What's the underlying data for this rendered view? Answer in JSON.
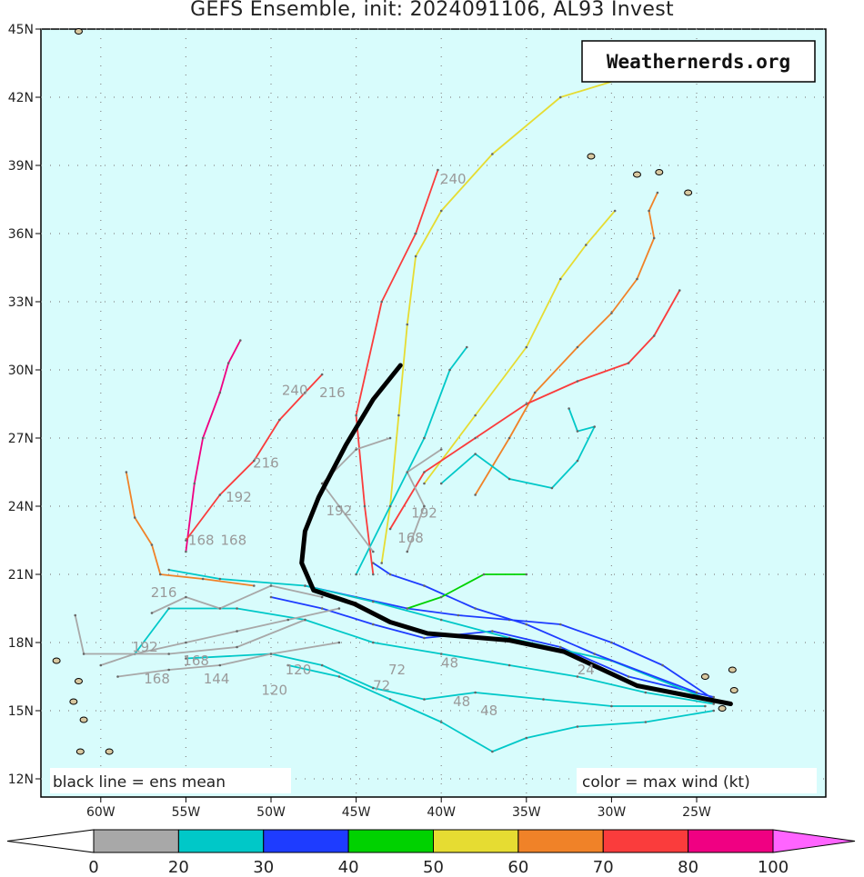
{
  "title": "GEFS Ensemble, init: 2024091106, AL93 Invest",
  "logo": "Weathernerds.org",
  "legend_left": "black line = ens mean",
  "legend_right": "color = max wind (kt)",
  "colors": {
    "ocean": "#d8fcfc",
    "mean": "#000000",
    "land": "#d8c8a0"
  },
  "chart_data": {
    "type": "map",
    "lon_range": [
      -63.5,
      -17.4
    ],
    "lat_range": [
      11.2,
      45
    ],
    "lon_ticks": [
      {
        "v": -60,
        "t": "60W"
      },
      {
        "v": -55,
        "t": "55W"
      },
      {
        "v": -50,
        "t": "50W"
      },
      {
        "v": -45,
        "t": "45W"
      },
      {
        "v": -40,
        "t": "40W"
      },
      {
        "v": -35,
        "t": "35W"
      },
      {
        "v": -30,
        "t": "30W"
      },
      {
        "v": -25,
        "t": "25W"
      }
    ],
    "lat_ticks": [
      {
        "v": 12,
        "t": "12N"
      },
      {
        "v": 15,
        "t": "15N"
      },
      {
        "v": 18,
        "t": "18N"
      },
      {
        "v": 21,
        "t": "21N"
      },
      {
        "v": 24,
        "t": "24N"
      },
      {
        "v": 27,
        "t": "27N"
      },
      {
        "v": 30,
        "t": "30N"
      },
      {
        "v": 33,
        "t": "33N"
      },
      {
        "v": 36,
        "t": "36N"
      },
      {
        "v": 39,
        "t": "39N"
      },
      {
        "v": 42,
        "t": "42N"
      },
      {
        "v": 45,
        "t": "45N"
      }
    ],
    "grid": true,
    "colorbar": {
      "labels": [
        "0",
        "20",
        "30",
        "40",
        "50",
        "60",
        "70",
        "80",
        "100"
      ],
      "colors": [
        "#a8a8a8",
        "#00c8c8",
        "#1e3cff",
        "#00d200",
        "#e6dc32",
        "#f08228",
        "#fa3c3c",
        "#f00082",
        "#ff64ff"
      ]
    },
    "ensemble_mean": [
      [
        -23,
        15.3
      ],
      [
        -28.5,
        16.1
      ],
      [
        -32.8,
        17.6
      ],
      [
        -36,
        18.1
      ],
      [
        -40.8,
        18.4
      ],
      [
        -43,
        18.9
      ],
      [
        -45.1,
        19.7
      ],
      [
        -47.5,
        20.3
      ],
      [
        -48.2,
        21.5
      ],
      [
        -48,
        22.9
      ],
      [
        -47.2,
        24.4
      ],
      [
        -45.6,
        26.7
      ],
      [
        -44,
        28.7
      ],
      [
        -42.4,
        30.2
      ]
    ],
    "members": [
      {
        "wind": 55,
        "points": [
          [
            -43.5,
            21.5
          ],
          [
            -43,
            24
          ],
          [
            -42.5,
            28
          ],
          [
            -42,
            32
          ],
          [
            -41.5,
            35
          ],
          [
            -40,
            37
          ],
          [
            -37,
            39.5
          ],
          [
            -33,
            42
          ],
          [
            -29.5,
            42.8
          ]
        ]
      },
      {
        "wind": 75,
        "points": [
          [
            -44,
            21
          ],
          [
            -44.5,
            24
          ],
          [
            -45,
            28
          ],
          [
            -43.5,
            33
          ],
          [
            -41.5,
            36
          ],
          [
            -40.2,
            38.8
          ]
        ]
      },
      {
        "wind": 65,
        "points": [
          [
            -38,
            24.5
          ],
          [
            -36,
            27
          ],
          [
            -34.5,
            29
          ],
          [
            -32,
            31
          ],
          [
            -30,
            32.5
          ],
          [
            -28.5,
            34
          ],
          [
            -27.5,
            35.8
          ],
          [
            -27.8,
            37
          ],
          [
            -27.3,
            37.8
          ]
        ]
      },
      {
        "wind": 55,
        "points": [
          [
            -41,
            25
          ],
          [
            -38,
            28
          ],
          [
            -35,
            31
          ],
          [
            -33,
            34
          ],
          [
            -31.5,
            35.5
          ],
          [
            -29.8,
            37
          ]
        ]
      },
      {
        "wind": 75,
        "points": [
          [
            -43,
            23
          ],
          [
            -41,
            25.5
          ],
          [
            -38,
            27
          ],
          [
            -35,
            28.5
          ],
          [
            -32,
            29.5
          ],
          [
            -29,
            30.3
          ],
          [
            -27.5,
            31.5
          ],
          [
            -26,
            33.5
          ]
        ]
      },
      {
        "wind": 85,
        "points": [
          [
            -55,
            22
          ],
          [
            -54.5,
            25
          ],
          [
            -54,
            27
          ],
          [
            -53,
            29
          ],
          [
            -52.5,
            30.3
          ],
          [
            -51.8,
            31.3
          ]
        ]
      },
      {
        "wind": 75,
        "points": [
          [
            -55,
            22.5
          ],
          [
            -53,
            24.5
          ],
          [
            -51,
            26
          ],
          [
            -49.5,
            27.8
          ],
          [
            -48,
            29
          ],
          [
            -47,
            29.8
          ]
        ]
      },
      {
        "wind": 25,
        "points": [
          [
            -40,
            25
          ],
          [
            -38,
            26.3
          ],
          [
            -36,
            25.2
          ],
          [
            -33.5,
            24.8
          ],
          [
            -32,
            26
          ],
          [
            -31,
            27.5
          ],
          [
            -32,
            27.3
          ],
          [
            -32.5,
            28.3
          ]
        ]
      },
      {
        "wind": 65,
        "points": [
          [
            -58.5,
            25.5
          ],
          [
            -58,
            23.5
          ],
          [
            -57,
            22.3
          ],
          [
            -56.5,
            21
          ],
          [
            -54,
            20.8
          ],
          [
            -51,
            20.5
          ]
        ]
      },
      {
        "wind": 25,
        "points": [
          [
            -45,
            21
          ],
          [
            -43,
            24
          ],
          [
            -41,
            27
          ],
          [
            -39.5,
            30
          ],
          [
            -38.5,
            31
          ]
        ]
      },
      {
        "wind": 25,
        "points": [
          [
            -24,
            15.3
          ],
          [
            -28,
            15.8
          ],
          [
            -32,
            16.5
          ],
          [
            -36,
            17
          ],
          [
            -40,
            17.5
          ],
          [
            -44,
            18
          ],
          [
            -48,
            19
          ],
          [
            -52,
            19.5
          ],
          [
            -56,
            19.5
          ],
          [
            -58,
            17.5
          ]
        ]
      },
      {
        "wind": 35,
        "points": [
          [
            -24,
            15.5
          ],
          [
            -27,
            17
          ],
          [
            -30,
            18
          ],
          [
            -33,
            18.8
          ],
          [
            -36,
            19
          ],
          [
            -39,
            19.2
          ],
          [
            -42,
            19.5
          ],
          [
            -45,
            20
          ],
          [
            -48,
            20.5
          ]
        ]
      },
      {
        "wind": 25,
        "points": [
          [
            -24,
            15
          ],
          [
            -28,
            14.5
          ],
          [
            -32,
            14.3
          ],
          [
            -35,
            13.8
          ],
          [
            -37,
            13.2
          ],
          [
            -40,
            14.5
          ],
          [
            -43,
            15.5
          ],
          [
            -46,
            16.5
          ],
          [
            -49,
            17
          ]
        ]
      },
      {
        "wind": 35,
        "points": [
          [
            -24,
            15.6
          ],
          [
            -29,
            16.5
          ],
          [
            -33,
            17.8
          ],
          [
            -37,
            18.5
          ],
          [
            -41,
            18.2
          ],
          [
            -44,
            18.8
          ],
          [
            -47,
            19.5
          ],
          [
            -50,
            20
          ]
        ]
      },
      {
        "wind": 25,
        "points": [
          [
            -24.5,
            15.2
          ],
          [
            -30,
            15.2
          ],
          [
            -34,
            15.5
          ],
          [
            -38,
            15.8
          ],
          [
            -41,
            15.5
          ],
          [
            -44,
            16
          ],
          [
            -47,
            17
          ],
          [
            -50,
            17.5
          ],
          [
            -55,
            17.3
          ]
        ]
      },
      {
        "wind": 25,
        "points": [
          [
            -24,
            15.4
          ],
          [
            -30,
            17.2
          ],
          [
            -36,
            18.2
          ],
          [
            -40,
            19
          ],
          [
            -44,
            19.8
          ],
          [
            -48,
            20.5
          ],
          [
            -53,
            20.8
          ],
          [
            -56,
            21.2
          ]
        ]
      },
      {
        "wind": 35,
        "points": [
          [
            -25,
            15.8
          ],
          [
            -31,
            17.5
          ],
          [
            -35,
            18.8
          ],
          [
            -38,
            19.5
          ],
          [
            -41,
            20.5
          ],
          [
            -43,
            21
          ],
          [
            -44,
            21.5
          ]
        ]
      },
      {
        "wind": 45,
        "points": [
          [
            -42,
            19.5
          ],
          [
            -40,
            20
          ],
          [
            -37.5,
            21
          ],
          [
            -35,
            21
          ]
        ]
      },
      {
        "wind": 10,
        "points": [
          [
            -46,
            19.5
          ],
          [
            -49,
            19
          ],
          [
            -52,
            18.5
          ],
          [
            -55,
            18
          ],
          [
            -58,
            17.5
          ],
          [
            -60,
            17
          ]
        ]
      },
      {
        "wind": 10,
        "points": [
          [
            -46,
            18
          ],
          [
            -50,
            17.5
          ],
          [
            -53,
            17
          ],
          [
            -56,
            16.8
          ],
          [
            -59,
            16.5
          ]
        ]
      },
      {
        "wind": 10,
        "points": [
          [
            -47,
            20
          ],
          [
            -50,
            20.5
          ],
          [
            -53,
            19.5
          ],
          [
            -55,
            20
          ],
          [
            -57,
            19.3
          ]
        ]
      },
      {
        "wind": 10,
        "points": [
          [
            -44,
            22
          ],
          [
            -46,
            24
          ],
          [
            -47,
            25
          ],
          [
            -45,
            26.5
          ],
          [
            -43,
            27
          ]
        ]
      },
      {
        "wind": 10,
        "points": [
          [
            -42,
            22
          ],
          [
            -41,
            24
          ],
          [
            -42,
            25.5
          ],
          [
            -40,
            26.5
          ]
        ]
      },
      {
        "wind": 10,
        "points": [
          [
            -48,
            19
          ],
          [
            -52,
            17.8
          ],
          [
            -56,
            17.5
          ],
          [
            -61,
            17.5
          ],
          [
            -61.5,
            19.2
          ]
        ]
      }
    ],
    "time_labels": [
      {
        "t": "240",
        "lon": -39.3,
        "lat": 38.2
      },
      {
        "t": "240",
        "lon": -48.6,
        "lat": 28.9
      },
      {
        "t": "216",
        "lon": -46.4,
        "lat": 28.8
      },
      {
        "t": "216",
        "lon": -50.3,
        "lat": 25.7
      },
      {
        "t": "192",
        "lon": -51.9,
        "lat": 24.2
      },
      {
        "t": "192",
        "lon": -46.0,
        "lat": 23.6
      },
      {
        "t": "192",
        "lon": -41.0,
        "lat": 23.5
      },
      {
        "t": "168",
        "lon": -54.1,
        "lat": 22.3
      },
      {
        "t": "168",
        "lon": -52.2,
        "lat": 22.3
      },
      {
        "t": "168",
        "lon": -41.8,
        "lat": 22.4
      },
      {
        "t": "216",
        "lon": -56.3,
        "lat": 20.0
      },
      {
        "t": "192",
        "lon": -57.4,
        "lat": 17.6
      },
      {
        "t": "168",
        "lon": -56.7,
        "lat": 16.2
      },
      {
        "t": "168",
        "lon": -54.4,
        "lat": 17.0
      },
      {
        "t": "144",
        "lon": -53.2,
        "lat": 16.2
      },
      {
        "t": "120",
        "lon": -49.8,
        "lat": 15.7
      },
      {
        "t": "120",
        "lon": -48.4,
        "lat": 16.6
      },
      {
        "t": "72",
        "lon": -43.5,
        "lat": 15.9
      },
      {
        "t": "72",
        "lon": -42.6,
        "lat": 16.6
      },
      {
        "t": "48",
        "lon": -38.8,
        "lat": 15.2
      },
      {
        "t": "48",
        "lon": -37.2,
        "lat": 14.8
      },
      {
        "t": "48",
        "lon": -39.5,
        "lat": 16.9
      },
      {
        "t": "24",
        "lon": -31.5,
        "lat": 16.6
      }
    ],
    "islands": [
      [
        -28.5,
        38.6
      ],
      [
        -27.2,
        38.7
      ],
      [
        -25.5,
        37.8
      ],
      [
        -31.2,
        39.4
      ],
      [
        -24.5,
        16.5
      ],
      [
        -23.5,
        15.1
      ],
      [
        -22.9,
        16.8
      ],
      [
        -61.3,
        16.3
      ],
      [
        -61,
        14.6
      ],
      [
        -61.6,
        15.4
      ],
      [
        -61.2,
        13.2
      ],
      [
        -62.6,
        17.2
      ],
      [
        -59.5,
        13.2
      ],
      [
        -22.8,
        15.9
      ],
      [
        -61.3,
        44.9
      ]
    ]
  }
}
